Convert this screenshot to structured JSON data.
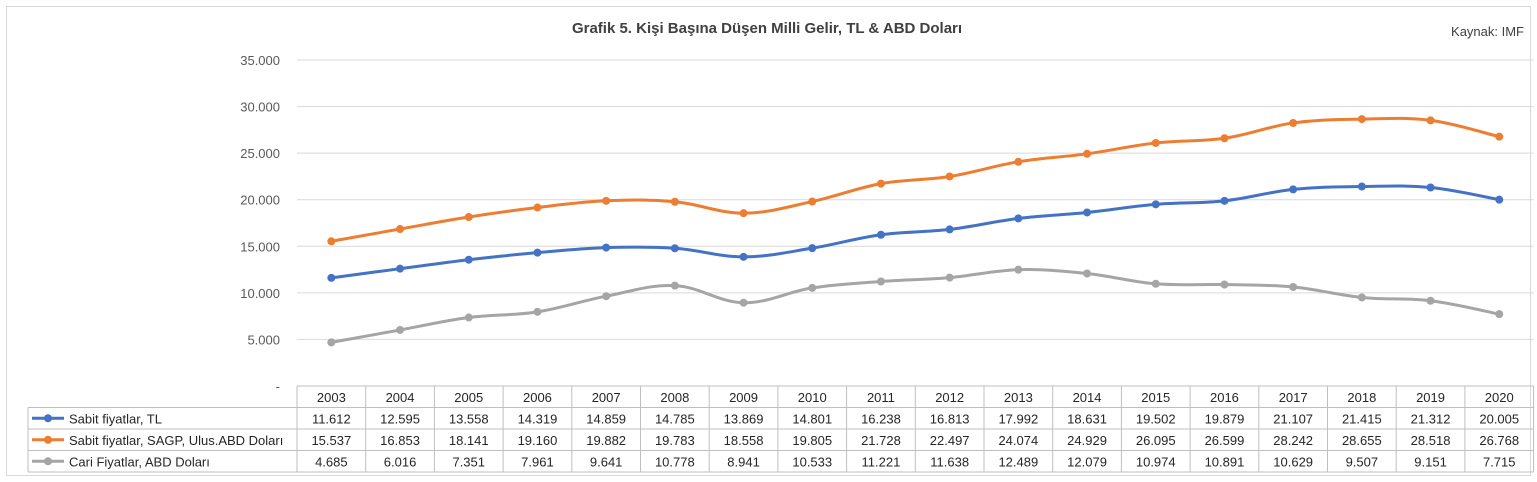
{
  "chart_data": {
    "type": "line",
    "title": "Grafik 5. Kişi Başına Düşen Milli Gelir, TL & ABD Doları",
    "source": "Kaynak: IMF",
    "x": [
      "2003",
      "2004",
      "2005",
      "2006",
      "2007",
      "2008",
      "2009",
      "2010",
      "2011",
      "2012",
      "2013",
      "2014",
      "2015",
      "2016",
      "2017",
      "2018",
      "2019",
      "2020"
    ],
    "ylim": [
      0,
      35000
    ],
    "yticks": [
      0,
      5000,
      10000,
      15000,
      20000,
      25000,
      30000,
      35000
    ],
    "ytick_labels": [
      "-",
      "5.000",
      "10.000",
      "15.000",
      "20.000",
      "25.000",
      "30.000",
      "35.000"
    ],
    "grid": true,
    "legend": "data-table",
    "series": [
      {
        "name": "Sabit fiyatlar, TL",
        "color": "#4472C4",
        "values": [
          11612,
          12595,
          13558,
          14319,
          14859,
          14785,
          13869,
          14801,
          16238,
          16813,
          17992,
          18631,
          19502,
          19879,
          21107,
          21415,
          21312,
          20005
        ],
        "labels": [
          "11.612",
          "12.595",
          "13.558",
          "14.319",
          "14.859",
          "14.785",
          "13.869",
          "14.801",
          "16.238",
          "16.813",
          "17.992",
          "18.631",
          "19.502",
          "19.879",
          "21.107",
          "21.415",
          "21.312",
          "20.005"
        ]
      },
      {
        "name": "Sabit fiyatlar, SAGP, Ulus.ABD Doları",
        "color": "#ED7D31",
        "values": [
          15537,
          16853,
          18141,
          19160,
          19882,
          19783,
          18558,
          19805,
          21728,
          22497,
          24074,
          24929,
          26095,
          26599,
          28242,
          28655,
          28518,
          26768
        ],
        "labels": [
          "15.537",
          "16.853",
          "18.141",
          "19.160",
          "19.882",
          "19.783",
          "18.558",
          "19.805",
          "21.728",
          "22.497",
          "24.074",
          "24.929",
          "26.095",
          "26.599",
          "28.242",
          "28.655",
          "28.518",
          "26.768"
        ]
      },
      {
        "name": "Cari Fiyatlar, ABD Doları",
        "color": "#A5A5A5",
        "values": [
          4685,
          6016,
          7351,
          7961,
          9641,
          10778,
          8941,
          10533,
          11221,
          11638,
          12489,
          12079,
          10974,
          10891,
          10629,
          9507,
          9151,
          7715
        ],
        "labels": [
          "4.685",
          "6.016",
          "7.351",
          "7.961",
          "9.641",
          "10.778",
          "8.941",
          "10.533",
          "11.221",
          "11.638",
          "12.489",
          "12.079",
          "10.974",
          "10.891",
          "10.629",
          "9.507",
          "9.151",
          "7.715"
        ]
      }
    ]
  }
}
